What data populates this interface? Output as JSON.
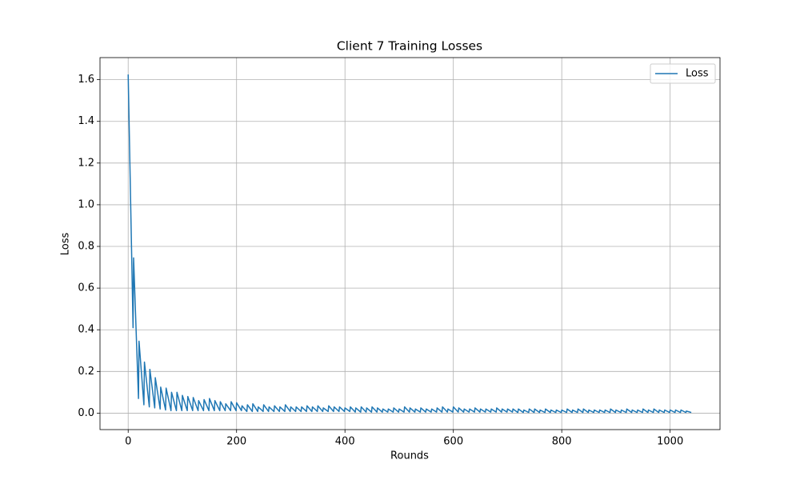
{
  "chart_data": {
    "type": "line",
    "title": "Client 7 Training Losses",
    "x_label": "Rounds",
    "y_label": "Loss",
    "x": [
      0,
      9,
      10,
      19,
      20,
      29,
      30,
      39,
      40,
      49,
      50,
      59,
      60,
      69,
      70,
      79,
      80,
      89,
      90,
      99,
      100,
      109,
      110,
      119,
      120,
      129,
      130,
      139,
      140,
      149,
      150,
      159,
      160,
      169,
      170,
      179,
      180,
      189,
      190,
      199,
      200,
      209,
      210,
      219,
      220,
      229,
      230,
      239,
      240,
      249,
      250,
      259,
      260,
      269,
      270,
      279,
      280,
      289,
      290,
      299,
      300,
      309,
      310,
      319,
      320,
      329,
      330,
      339,
      340,
      349,
      350,
      359,
      360,
      369,
      370,
      379,
      380,
      389,
      390,
      399,
      400,
      409,
      410,
      419,
      420,
      429,
      430,
      439,
      440,
      449,
      450,
      459,
      460,
      469,
      470,
      479,
      480,
      489,
      490,
      499,
      500,
      509,
      510,
      519,
      520,
      529,
      530,
      539,
      540,
      549,
      550,
      559,
      560,
      569,
      570,
      579,
      580,
      589,
      590,
      599,
      600,
      609,
      610,
      619,
      620,
      629,
      630,
      639,
      640,
      649,
      650,
      659,
      660,
      669,
      670,
      679,
      680,
      689,
      690,
      699,
      700,
      709,
      710,
      719,
      720,
      729,
      730,
      739,
      740,
      749,
      750,
      759,
      760,
      769,
      770,
      779,
      780,
      789,
      790,
      799,
      800,
      809,
      810,
      819,
      820,
      829,
      830,
      839,
      840,
      849,
      850,
      859,
      860,
      869,
      870,
      879,
      880,
      889,
      890,
      899,
      900,
      909,
      910,
      919,
      920,
      929,
      930,
      939,
      940,
      949,
      950,
      959,
      960,
      969,
      970,
      979,
      980,
      989,
      990,
      999,
      1000,
      1009,
      1010,
      1019,
      1020,
      1029,
      1030,
      1039
    ],
    "series": [
      {
        "name": "Loss",
        "color": "#1f77b4",
        "values": [
          1.625,
          0.41,
          0.745,
          0.07,
          0.345,
          0.04,
          0.245,
          0.03,
          0.21,
          0.025,
          0.17,
          0.02,
          0.125,
          0.015,
          0.12,
          0.012,
          0.1,
          0.012,
          0.1,
          0.012,
          0.085,
          0.012,
          0.08,
          0.012,
          0.075,
          0.012,
          0.06,
          0.012,
          0.065,
          0.012,
          0.07,
          0.012,
          0.06,
          0.012,
          0.055,
          0.012,
          0.045,
          0.012,
          0.055,
          0.012,
          0.05,
          0.012,
          0.035,
          0.008,
          0.04,
          0.008,
          0.045,
          0.008,
          0.03,
          0.008,
          0.04,
          0.008,
          0.03,
          0.008,
          0.035,
          0.008,
          0.03,
          0.008,
          0.04,
          0.008,
          0.03,
          0.008,
          0.03,
          0.008,
          0.03,
          0.008,
          0.035,
          0.008,
          0.03,
          0.008,
          0.035,
          0.008,
          0.025,
          0.008,
          0.035,
          0.008,
          0.03,
          0.008,
          0.03,
          0.008,
          0.025,
          0.008,
          0.03,
          0.005,
          0.025,
          0.005,
          0.03,
          0.005,
          0.025,
          0.005,
          0.03,
          0.005,
          0.025,
          0.005,
          0.02,
          0.005,
          0.02,
          0.005,
          0.025,
          0.005,
          0.02,
          0.005,
          0.03,
          0.005,
          0.025,
          0.005,
          0.02,
          0.005,
          0.025,
          0.005,
          0.02,
          0.005,
          0.02,
          0.005,
          0.025,
          0.005,
          0.03,
          0.005,
          0.02,
          0.005,
          0.03,
          0.005,
          0.025,
          0.005,
          0.02,
          0.005,
          0.02,
          0.005,
          0.025,
          0.005,
          0.02,
          0.005,
          0.02,
          0.005,
          0.02,
          0.005,
          0.025,
          0.005,
          0.02,
          0.005,
          0.02,
          0.005,
          0.02,
          0.003,
          0.02,
          0.003,
          0.015,
          0.003,
          0.02,
          0.003,
          0.02,
          0.003,
          0.015,
          0.003,
          0.02,
          0.003,
          0.015,
          0.003,
          0.015,
          0.003,
          0.015,
          0.003,
          0.02,
          0.003,
          0.015,
          0.003,
          0.02,
          0.003,
          0.02,
          0.003,
          0.015,
          0.003,
          0.015,
          0.003,
          0.015,
          0.003,
          0.015,
          0.003,
          0.02,
          0.003,
          0.015,
          0.003,
          0.015,
          0.003,
          0.02,
          0.003,
          0.015,
          0.003,
          0.015,
          0.003,
          0.02,
          0.003,
          0.015,
          0.003,
          0.02,
          0.003,
          0.015,
          0.003,
          0.015,
          0.003,
          0.015,
          0.003,
          0.015,
          0.003,
          0.015,
          0.003,
          0.01,
          0.003
        ]
      }
    ],
    "xlim": [
      -52,
      1092
    ],
    "xticks": [
      0,
      200,
      400,
      600,
      800,
      1000
    ],
    "ylim": [
      -0.079,
      1.706
    ],
    "yticks": [
      {
        "value": 0,
        "label": "0.0"
      },
      0.2,
      0.4,
      0.6,
      0.8,
      {
        "value": 1,
        "label": "1.0"
      },
      1.2,
      1.4,
      1.6
    ],
    "grid": true,
    "legend": "upper right"
  }
}
